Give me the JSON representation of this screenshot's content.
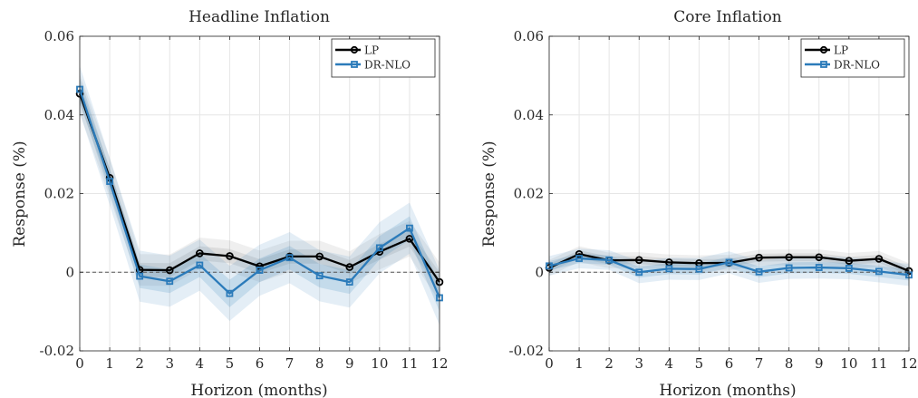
{
  "chart_data": [
    {
      "type": "line",
      "title": "Headline Inflation",
      "xlabel": "Horizon (months)",
      "ylabel": "Response (%)",
      "xlim": [
        0,
        12
      ],
      "ylim": [
        -0.02,
        0.06
      ],
      "x_ticks": [
        0,
        1,
        2,
        3,
        4,
        5,
        6,
        7,
        8,
        9,
        10,
        11,
        12
      ],
      "y_ticks": [
        -0.02,
        0,
        0.02,
        0.04,
        0.06
      ],
      "y_tick_labels": [
        "-0.02",
        "0",
        "0.02",
        "0.04",
        "0.06"
      ],
      "grid": true,
      "legend_position": "top-right",
      "zero_line": true,
      "x": [
        0,
        1,
        2,
        3,
        4,
        5,
        6,
        7,
        8,
        9,
        10,
        11,
        12
      ],
      "series": [
        {
          "name": "LP",
          "color": "#000000",
          "marker": "circle",
          "band_color": "#808080",
          "values": [
            0.0454,
            0.024,
            0.0006,
            0.0005,
            0.0048,
            0.0041,
            0.0015,
            0.004,
            0.004,
            0.0013,
            0.0052,
            0.0085,
            -0.0025
          ],
          "band_inner": [
            0.0025,
            0.0025,
            0.0018,
            0.0018,
            0.0018,
            0.0018,
            0.0018,
            0.0018,
            0.0018,
            0.0018,
            0.002,
            0.002,
            0.0025
          ],
          "band_outer": [
            0.005,
            0.005,
            0.004,
            0.004,
            0.004,
            0.004,
            0.004,
            0.004,
            0.004,
            0.004,
            0.0045,
            0.0045,
            0.005
          ]
        },
        {
          "name": "DR-NLO",
          "color": "#2b7bba",
          "marker": "square",
          "band_color": "#2b7bba",
          "values": [
            0.0465,
            0.0231,
            -0.001,
            -0.0023,
            0.0018,
            -0.0054,
            0.0005,
            0.0037,
            -0.0009,
            -0.0025,
            0.0062,
            0.0112,
            -0.0065
          ],
          "band_inner": [
            0.003,
            0.003,
            0.003,
            0.003,
            0.003,
            0.0035,
            0.003,
            0.003,
            0.003,
            0.003,
            0.003,
            0.003,
            0.0035
          ],
          "band_outer": [
            0.006,
            0.006,
            0.0065,
            0.0065,
            0.0065,
            0.007,
            0.0065,
            0.0065,
            0.0065,
            0.0065,
            0.0065,
            0.0065,
            0.007
          ]
        }
      ]
    },
    {
      "type": "line",
      "title": "Core Inflation",
      "xlabel": "Horizon (months)",
      "ylabel": "Response (%)",
      "xlim": [
        0,
        12
      ],
      "ylim": [
        -0.02,
        0.06
      ],
      "x_ticks": [
        0,
        1,
        2,
        3,
        4,
        5,
        6,
        7,
        8,
        9,
        10,
        11,
        12
      ],
      "y_ticks": [
        -0.02,
        0,
        0.02,
        0.04,
        0.06
      ],
      "y_tick_labels": [
        "-0.02",
        "0",
        "0.02",
        "0.04",
        "0.06"
      ],
      "grid": true,
      "legend_position": "top-right",
      "zero_line": true,
      "x": [
        0,
        1,
        2,
        3,
        4,
        5,
        6,
        7,
        8,
        9,
        10,
        11,
        12
      ],
      "series": [
        {
          "name": "LP",
          "color": "#000000",
          "marker": "circle",
          "band_color": "#808080",
          "values": [
            0.0011,
            0.0046,
            0.003,
            0.0031,
            0.0025,
            0.0023,
            0.0024,
            0.0037,
            0.0038,
            0.0038,
            0.0029,
            0.0034,
            0.0003
          ],
          "band_inner": [
            0.001,
            0.001,
            0.001,
            0.001,
            0.001,
            0.001,
            0.001,
            0.001,
            0.001,
            0.001,
            0.001,
            0.001,
            0.001
          ],
          "band_outer": [
            0.002,
            0.002,
            0.002,
            0.002,
            0.002,
            0.002,
            0.002,
            0.002,
            0.002,
            0.002,
            0.002,
            0.002,
            0.002
          ]
        },
        {
          "name": "DR-NLO",
          "color": "#2b7bba",
          "marker": "square",
          "band_color": "#2b7bba",
          "values": [
            0.0016,
            0.0035,
            0.0031,
            0.0,
            0.0009,
            0.0008,
            0.0025,
            0.0001,
            0.0011,
            0.0012,
            0.001,
            0.0002,
            -0.0007
          ],
          "band_inner": [
            0.0012,
            0.0012,
            0.0012,
            0.0014,
            0.0014,
            0.0014,
            0.0014,
            0.0014,
            0.0014,
            0.0014,
            0.0014,
            0.0014,
            0.0014
          ],
          "band_outer": [
            0.0025,
            0.0025,
            0.0025,
            0.0028,
            0.0028,
            0.0028,
            0.0028,
            0.0028,
            0.0028,
            0.0028,
            0.0028,
            0.0028,
            0.0028
          ]
        }
      ]
    }
  ]
}
